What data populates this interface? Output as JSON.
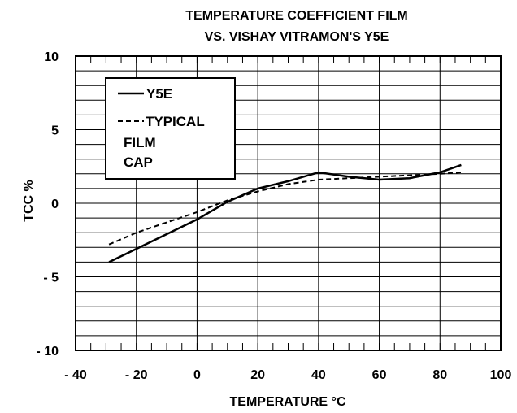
{
  "chart_data": {
    "type": "line",
    "title_lines": [
      "TEMPERATURE COEFFICIENT FILM",
      "VS. VISHAY VITRAMON'S Y5E"
    ],
    "xlabel": "TEMPERATURE °C",
    "ylabel": "TCC  %",
    "xlim": [
      -40,
      100
    ],
    "ylim": [
      -10,
      10
    ],
    "x_ticks": [
      -40,
      -20,
      0,
      20,
      40,
      60,
      80,
      100
    ],
    "x_tick_labels": [
      "- 40",
      "- 20",
      "0",
      "20",
      "40",
      "60",
      "80",
      "100"
    ],
    "y_ticks": [
      10,
      5,
      0,
      -5,
      -10
    ],
    "y_tick_labels": [
      "10",
      "5",
      "0",
      "- 5",
      "- 10"
    ],
    "grid": true,
    "legend_position": "top-left",
    "legend_lines": [
      [
        "Y5E"
      ],
      [
        "TYPICAL",
        "FILM",
        "CAP"
      ]
    ],
    "series": [
      {
        "style": "solid",
        "color": "#000000",
        "x": [
          -29,
          -20,
          -10,
          0,
          10,
          20,
          30,
          40,
          50,
          60,
          70,
          80,
          87
        ],
        "y": [
          -4.0,
          -3.1,
          -2.1,
          -1.1,
          0.1,
          1.0,
          1.5,
          2.1,
          1.8,
          1.6,
          1.7,
          2.1,
          2.6
        ]
      },
      {
        "style": "dashed",
        "color": "#000000",
        "x": [
          -29,
          -20,
          -10,
          0,
          10,
          20,
          30,
          40,
          50,
          60,
          70,
          80,
          87
        ],
        "y": [
          -2.8,
          -2.0,
          -1.3,
          -0.6,
          0.2,
          0.8,
          1.3,
          1.6,
          1.7,
          1.8,
          1.9,
          2.0,
          2.1
        ]
      }
    ]
  }
}
